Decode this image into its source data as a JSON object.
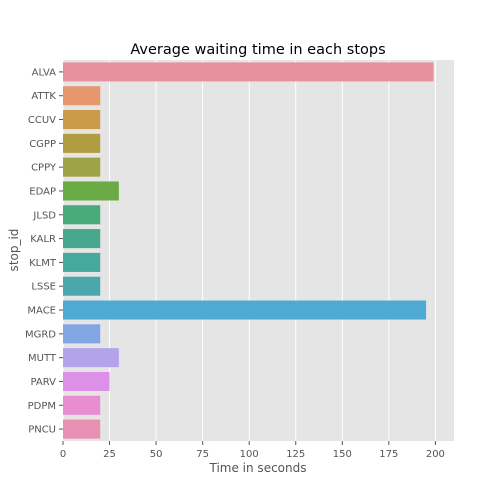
{
  "chart_data": {
    "type": "bar",
    "orientation": "horizontal",
    "title": "Average waiting time in each stops",
    "xlabel": "Time in seconds",
    "ylabel": "stop_id",
    "xlim": [
      0,
      210
    ],
    "xticks": [
      0,
      25,
      50,
      75,
      100,
      125,
      150,
      175,
      200
    ],
    "grid": true,
    "categories": [
      "ALVA",
      "ATTK",
      "CCUV",
      "CGPP",
      "CPPY",
      "EDAP",
      "JLSD",
      "KALR",
      "KLMT",
      "LSSE",
      "MACE",
      "MGRD",
      "MUTT",
      "PARV",
      "PDPM",
      "PNCU"
    ],
    "values": [
      199,
      20,
      20,
      20,
      20,
      30,
      20,
      20,
      20,
      20,
      195,
      20,
      30,
      25,
      20,
      20
    ],
    "colors": [
      "#e8909e",
      "#e6976e",
      "#cc9b4a",
      "#b09d41",
      "#9ea345",
      "#6aab46",
      "#47ab7a",
      "#47a88f",
      "#47a89d",
      "#4aa8ad",
      "#4fa9d0",
      "#82a5e3",
      "#b3a4ea",
      "#dd90e8",
      "#e88dcf",
      "#e98fb4"
    ]
  },
  "style": {
    "plot_background": "#e5e5e5",
    "grid_color": "#ffffff",
    "text_color": "#555555"
  }
}
